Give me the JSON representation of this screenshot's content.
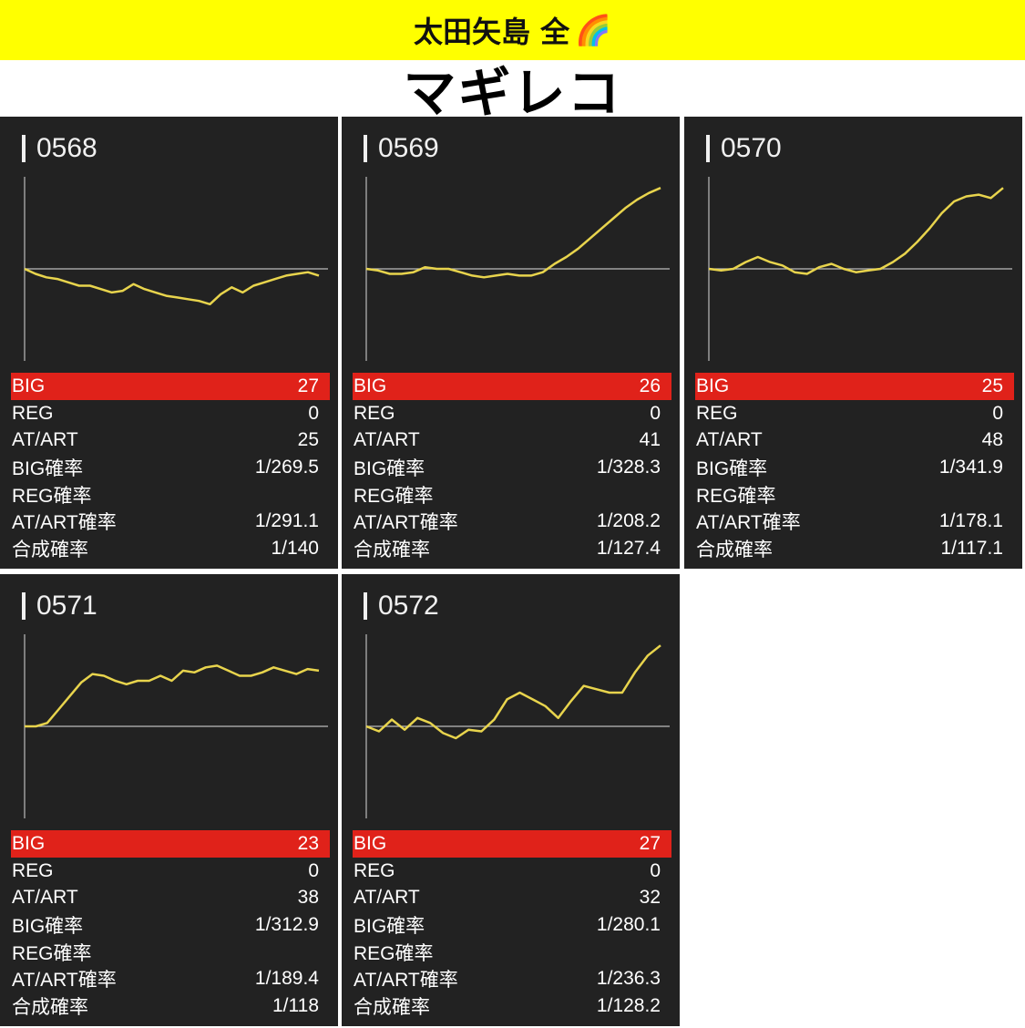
{
  "header": {
    "banner_text": "太田矢島 全",
    "banner_emoji": "🌈",
    "title": "マギレコ"
  },
  "colors": {
    "banner_bg": "#ffff00",
    "panel_bg": "#222222",
    "big_row_bg": "#e0221a",
    "line_color": "#e8d44d"
  },
  "stat_labels": [
    "BIG",
    "REG",
    "AT/ART",
    "BIG確率",
    "REG確率",
    "AT/ART確率",
    "合成確率"
  ],
  "panels": [
    {
      "id": "0568",
      "stats": [
        "27",
        "0",
        "25",
        "1/269.5",
        "",
        "1/291.1",
        "1/140"
      ]
    },
    {
      "id": "0569",
      "stats": [
        "26",
        "0",
        "41",
        "1/328.3",
        "",
        "1/208.2",
        "1/127.4"
      ]
    },
    {
      "id": "0570",
      "stats": [
        "25",
        "0",
        "48",
        "1/341.9",
        "",
        "1/178.1",
        "1/117.1"
      ]
    },
    {
      "id": "0571",
      "stats": [
        "23",
        "0",
        "38",
        "1/312.9",
        "",
        "1/189.4",
        "1/118"
      ]
    },
    {
      "id": "0572",
      "stats": [
        "27",
        "0",
        "32",
        "1/280.1",
        "",
        "1/236.3",
        "1/128.2"
      ]
    }
  ],
  "chart_data": [
    {
      "type": "line",
      "name": "0568",
      "y": [
        0,
        -3,
        -5,
        -6,
        -8,
        -10,
        -10,
        -12,
        -14,
        -13,
        -9,
        -12,
        -14,
        -16,
        -17,
        -18,
        -19,
        -21,
        -15,
        -11,
        -14,
        -10,
        -8,
        -6,
        -4,
        -3,
        -2,
        -4
      ]
    },
    {
      "type": "line",
      "name": "0569",
      "y": [
        0,
        -1,
        -3,
        -3,
        -2,
        1,
        0,
        0,
        -2,
        -4,
        -5,
        -4,
        -3,
        -4,
        -4,
        -2,
        3,
        7,
        12,
        18,
        24,
        30,
        36,
        41,
        45,
        48
      ]
    },
    {
      "type": "line",
      "name": "0570",
      "y": [
        0,
        -1,
        0,
        4,
        7,
        4,
        2,
        -2,
        -3,
        1,
        3,
        0,
        -2,
        -1,
        0,
        4,
        9,
        16,
        24,
        33,
        40,
        43,
        44,
        42,
        48
      ]
    },
    {
      "type": "line",
      "name": "0571",
      "y": [
        0,
        0,
        2,
        10,
        18,
        26,
        31,
        30,
        27,
        25,
        27,
        27,
        30,
        27,
        33,
        32,
        35,
        36,
        33,
        30,
        30,
        32,
        35,
        33,
        31,
        34,
        33
      ]
    },
    {
      "type": "line",
      "name": "0572",
      "y": [
        0,
        -3,
        4,
        -2,
        5,
        2,
        -4,
        -7,
        -2,
        -3,
        4,
        16,
        20,
        16,
        12,
        5,
        15,
        24,
        22,
        20,
        20,
        32,
        42,
        48
      ]
    }
  ]
}
